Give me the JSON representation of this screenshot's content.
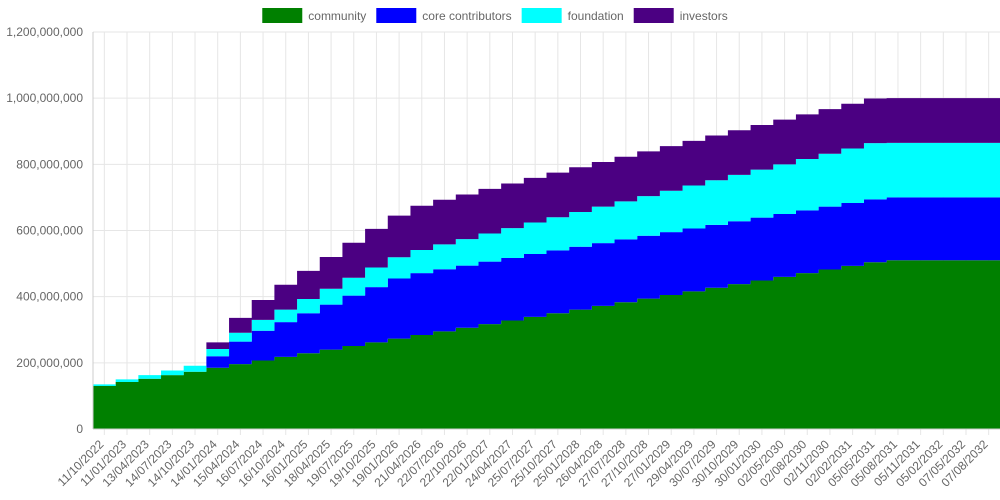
{
  "chart_data": {
    "type": "area",
    "stacked": true,
    "stepped": true,
    "title": "",
    "xlabel": "",
    "ylabel": "",
    "ylim": [
      0,
      1200000000
    ],
    "y_ticks": [
      0,
      200000000,
      400000000,
      600000000,
      800000000,
      1000000000,
      1200000000
    ],
    "y_tick_labels": [
      "0",
      "200,000,000",
      "400,000,000",
      "600,000,000",
      "800,000,000",
      "1,000,000,000",
      "1,200,000,000"
    ],
    "grid": true,
    "legend_position": "top",
    "x_tick_labels": [
      "11/10/2022",
      "11/01/2023",
      "13/04/2023",
      "14/07/2023",
      "14/10/2023",
      "14/01/2024",
      "15/04/2024",
      "16/07/2024",
      "16/10/2024",
      "16/01/2025",
      "18/04/2025",
      "19/07/2025",
      "19/10/2025",
      "19/01/2026",
      "21/04/2026",
      "22/07/2026",
      "22/10/2026",
      "22/01/2027",
      "24/04/2027",
      "25/07/2027",
      "25/10/2027",
      "25/01/2028",
      "26/04/2028",
      "27/07/2028",
      "27/10/2028",
      "27/01/2029",
      "29/04/2029",
      "30/07/2029",
      "30/10/2029",
      "30/01/2030",
      "02/05/2030",
      "02/08/2030",
      "02/11/2030",
      "02/02/2031",
      "05/05/2031",
      "05/08/2031",
      "05/11/2031",
      "05/02/2032",
      "07/05/2032",
      "07/08/2032"
    ],
    "x": [
      "11/10/2022",
      "11/01/2023",
      "13/04/2023",
      "14/07/2023",
      "14/10/2023",
      "14/01/2024",
      "15/04/2024",
      "16/07/2024",
      "16/10/2024",
      "16/01/2025",
      "18/04/2025",
      "19/07/2025",
      "19/10/2025",
      "19/01/2026",
      "21/04/2026",
      "22/07/2026",
      "22/10/2026",
      "22/01/2027",
      "24/04/2027",
      "25/07/2027",
      "25/10/2027",
      "25/01/2028",
      "26/04/2028",
      "27/07/2028",
      "27/10/2028",
      "27/01/2029",
      "29/04/2029",
      "30/07/2029",
      "30/10/2029",
      "30/01/2030",
      "02/05/2030",
      "02/08/2030",
      "02/11/2030",
      "02/02/2031",
      "05/05/2031",
      "05/08/2031",
      "05/11/2031",
      "05/02/2032",
      "07/05/2032",
      "07/08/2032"
    ],
    "series": [
      {
        "name": "community",
        "color": "#008000",
        "values": [
          130000000,
          142000000,
          152000000,
          163000000,
          173000000,
          185000000,
          196000000,
          207000000,
          218000000,
          229000000,
          240000000,
          251000000,
          262000000,
          273000000,
          284000000,
          295000000,
          306000000,
          317000000,
          328000000,
          339000000,
          350000000,
          361000000,
          372000000,
          383000000,
          394000000,
          405000000,
          416000000,
          427000000,
          438000000,
          449000000,
          460000000,
          471000000,
          482000000,
          493000000,
          504000000,
          510000000,
          510000000,
          510000000,
          510000000,
          510000000
        ]
      },
      {
        "name": "core contributors",
        "color": "#0000ff",
        "values": [
          0,
          0,
          0,
          0,
          0,
          35000000,
          68000000,
          90000000,
          105000000,
          121000000,
          136000000,
          152000000,
          167000000,
          182000000,
          187000000,
          188000000,
          188000000,
          189000000,
          189000000,
          190000000,
          190000000,
          190000000,
          190000000,
          190000000,
          190000000,
          190000000,
          190000000,
          190000000,
          190000000,
          190000000,
          190000000,
          190000000,
          190000000,
          190000000,
          190000000,
          190000000,
          190000000,
          190000000,
          190000000,
          190000000
        ]
      },
      {
        "name": "foundation",
        "color": "#00ffff",
        "values": [
          5000000,
          8000000,
          11000000,
          14000000,
          18000000,
          22000000,
          27000000,
          33000000,
          38000000,
          43000000,
          48000000,
          54000000,
          59000000,
          64000000,
          70000000,
          75000000,
          80000000,
          85000000,
          90000000,
          95000000,
          100000000,
          105000000,
          110000000,
          115000000,
          120000000,
          125000000,
          130000000,
          135000000,
          140000000,
          145000000,
          150000000,
          155000000,
          160000000,
          165000000,
          170000000,
          165000000,
          165000000,
          165000000,
          165000000,
          165000000
        ]
      },
      {
        "name": "investors",
        "color": "#4b0082",
        "values": [
          0,
          0,
          0,
          0,
          0,
          20000000,
          45000000,
          60000000,
          75000000,
          85000000,
          96000000,
          106000000,
          117000000,
          126000000,
          134000000,
          135000000,
          135000000,
          135000000,
          135000000,
          135000000,
          135000000,
          135000000,
          135000000,
          135000000,
          135000000,
          135000000,
          135000000,
          135000000,
          135000000,
          135000000,
          135000000,
          135000000,
          135000000,
          135000000,
          135000000,
          135000000,
          135000000,
          135000000,
          135000000,
          135000000
        ]
      }
    ]
  }
}
